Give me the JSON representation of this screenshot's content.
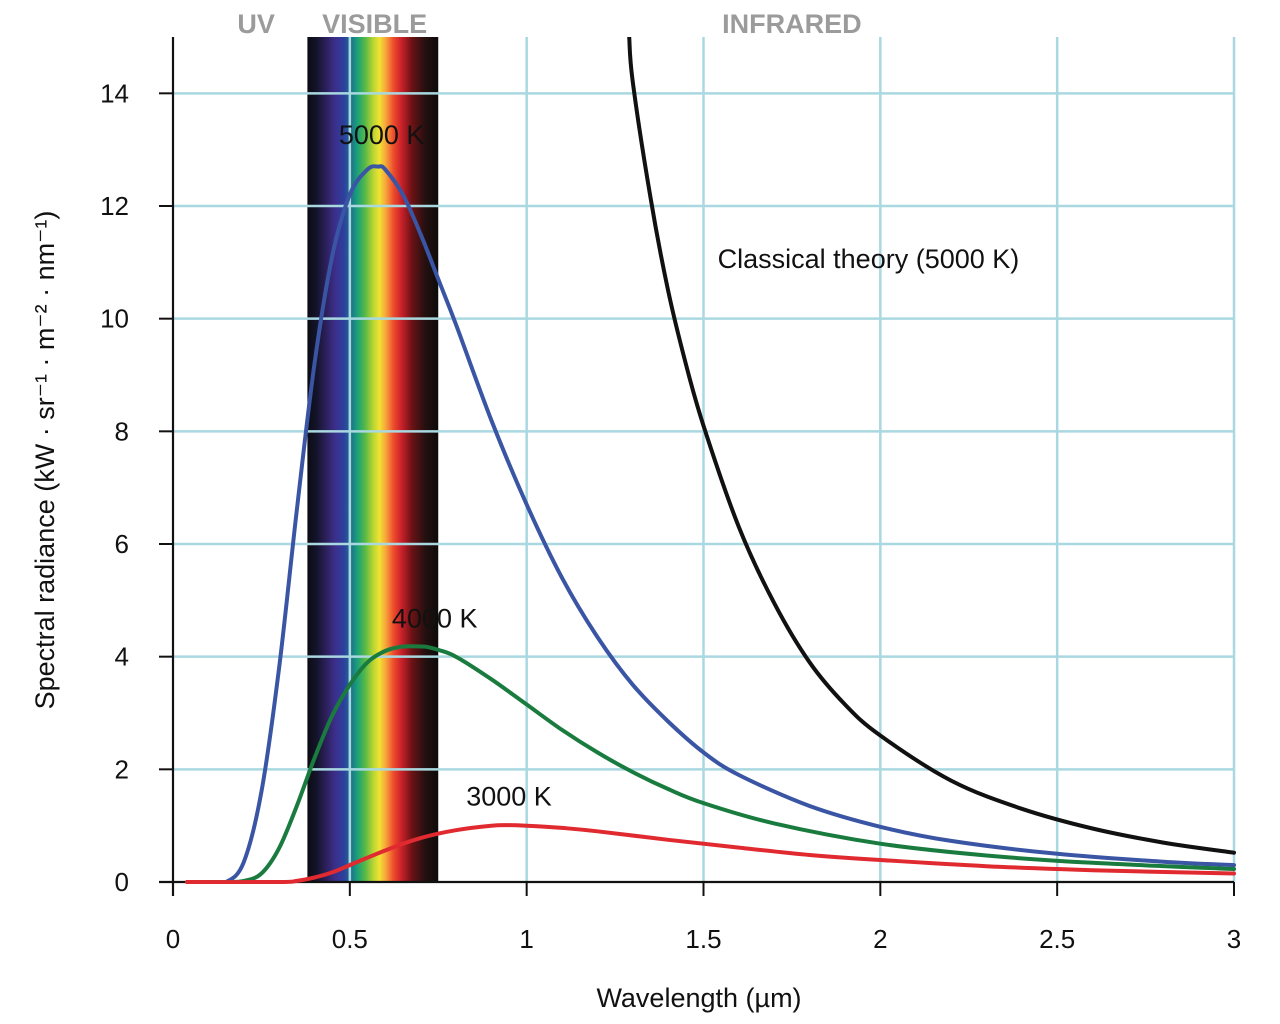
{
  "chart_data": {
    "type": "line",
    "xlabel": "Wavelength (µm)",
    "ylabel": "Spectral radiance (kW · sr⁻¹ · m⁻² · nm⁻¹)",
    "xlim": [
      0,
      3
    ],
    "ylim": [
      0,
      15
    ],
    "x_ticks": [
      0,
      0.5,
      1,
      1.5,
      2,
      2.5,
      3
    ],
    "x_tick_labels": [
      "0",
      "0.5",
      "1",
      "1.5",
      "2",
      "2.5",
      "3"
    ],
    "y_ticks": [
      0,
      2,
      4,
      6,
      8,
      10,
      12,
      14
    ],
    "y_tick_labels": [
      "0",
      "2",
      "4",
      "6",
      "8",
      "10",
      "12",
      "14"
    ],
    "grid": true,
    "regions": [
      {
        "label": "UV",
        "x_center": 0.235
      },
      {
        "label": "VISIBLE",
        "x_center": 0.57,
        "x_range": [
          0.38,
          0.75
        ]
      },
      {
        "label": "INFRARED",
        "x_center": 1.75
      }
    ],
    "series": [
      {
        "name": "5000 K",
        "color": "#3a55a4",
        "label_x": 0.59,
        "label_y": 13.1,
        "x": [
          0.04,
          0.1,
          0.15,
          0.2,
          0.25,
          0.3,
          0.35,
          0.4,
          0.45,
          0.5,
          0.55,
          0.58,
          0.6,
          0.65,
          0.7,
          0.75,
          0.8,
          0.9,
          1.0,
          1.1,
          1.2,
          1.3,
          1.4,
          1.5,
          1.6,
          1.8,
          2.0,
          2.2,
          2.5,
          2.8,
          3.0
        ],
        "y": [
          0,
          0,
          0,
          0.35,
          1.6,
          3.8,
          6.6,
          9.2,
          11.1,
          12.2,
          12.65,
          12.7,
          12.65,
          12.2,
          11.5,
          10.7,
          9.9,
          8.2,
          6.7,
          5.4,
          4.35,
          3.5,
          2.85,
          2.3,
          1.9,
          1.35,
          0.98,
          0.73,
          0.5,
          0.36,
          0.3
        ]
      },
      {
        "name": "4000 K",
        "color": "#1a7b3f",
        "label_x": 0.74,
        "label_y": 4.52,
        "x": [
          0.04,
          0.15,
          0.2,
          0.25,
          0.3,
          0.35,
          0.4,
          0.45,
          0.5,
          0.55,
          0.6,
          0.65,
          0.7,
          0.72,
          0.75,
          0.8,
          0.9,
          1.0,
          1.1,
          1.2,
          1.3,
          1.4,
          1.5,
          1.7,
          2.0,
          2.3,
          2.6,
          3.0
        ],
        "y": [
          0,
          0,
          0.02,
          0.15,
          0.6,
          1.35,
          2.2,
          2.95,
          3.5,
          3.9,
          4.1,
          4.18,
          4.18,
          4.17,
          4.12,
          4.0,
          3.6,
          3.15,
          2.7,
          2.3,
          1.95,
          1.65,
          1.4,
          1.04,
          0.68,
          0.47,
          0.34,
          0.23
        ]
      },
      {
        "name": "3000 K",
        "color": "#e02a30",
        "label_x": 0.95,
        "label_y": 1.36,
        "x": [
          0.04,
          0.3,
          0.35,
          0.4,
          0.45,
          0.5,
          0.6,
          0.7,
          0.8,
          0.9,
          0.95,
          1.0,
          1.1,
          1.2,
          1.4,
          1.6,
          1.8,
          2.0,
          2.3,
          2.6,
          3.0
        ],
        "y": [
          0,
          0,
          0.02,
          0.08,
          0.17,
          0.3,
          0.56,
          0.78,
          0.92,
          1.0,
          1.01,
          1.0,
          0.96,
          0.9,
          0.75,
          0.61,
          0.48,
          0.39,
          0.28,
          0.21,
          0.15
        ]
      },
      {
        "name": "Classical theory (5000 K)",
        "color": "#111111",
        "label_x": 1.54,
        "label_y": 10.9,
        "x": [
          1.29,
          1.3,
          1.35,
          1.4,
          1.45,
          1.5,
          1.6,
          1.7,
          1.8,
          1.9,
          2.0,
          2.2,
          2.4,
          2.6,
          2.8,
          3.0
        ],
        "y": [
          15.0,
          14.2,
          12.15,
          10.5,
          9.2,
          8.1,
          6.3,
          4.95,
          3.9,
          3.15,
          2.6,
          1.8,
          1.3,
          0.95,
          0.7,
          0.52
        ]
      }
    ]
  }
}
